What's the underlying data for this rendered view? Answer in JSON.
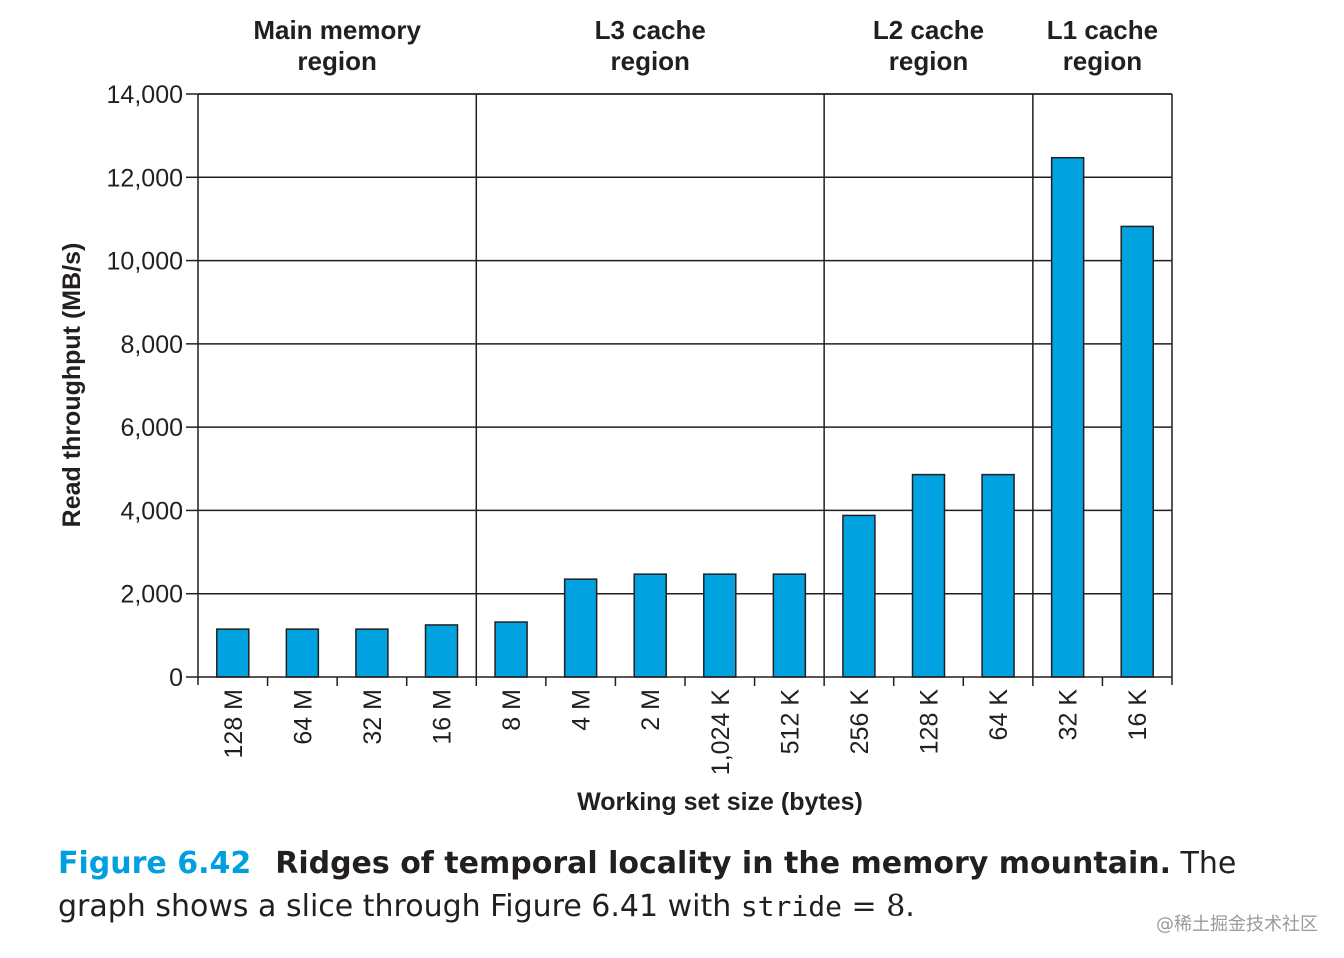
{
  "chart_data": {
    "type": "bar",
    "categories": [
      "128 M",
      "64 M",
      "32 M",
      "16 M",
      "8 M",
      "4 M",
      "2 M",
      "1,024 K",
      "512 K",
      "256 K",
      "128 K",
      "64 K",
      "32 K",
      "16 K"
    ],
    "values": [
      1150,
      1150,
      1150,
      1250,
      1320,
      2350,
      2470,
      2470,
      2470,
      3880,
      4860,
      4860,
      12470,
      10820
    ],
    "xlabel": "Working set size (bytes)",
    "ylabel": "Read throughput (MB/s)",
    "ylim": [
      0,
      14000
    ],
    "yticks": [
      0,
      2000,
      4000,
      6000,
      8000,
      10000,
      12000,
      14000
    ],
    "ytick_labels": [
      "0",
      "2,000",
      "4,000",
      "6,000",
      "8,000",
      "10,000",
      "12,000",
      "14,000"
    ],
    "grid": true,
    "bar_color": "#00a3e0",
    "regions": [
      {
        "line1": "Main memory",
        "line2": "region",
        "start": 0,
        "end": 4
      },
      {
        "line1": "L3 cache",
        "line2": "region",
        "start": 4,
        "end": 9
      },
      {
        "line1": "L2 cache",
        "line2": "region",
        "start": 9,
        "end": 12
      },
      {
        "line1": "L1 cache",
        "line2": "region",
        "start": 12,
        "end": 14
      }
    ]
  },
  "caption": {
    "label": "Figure 6.42",
    "title": "Ridges of temporal locality in the memory mountain.",
    "text1": " The graph shows a slice through Figure 6.41 with ",
    "code": "stride",
    "eq": " = 8",
    "end": ".",
    "label_color": "#00a0e0"
  },
  "watermark": "@稀土掘金技术社区"
}
